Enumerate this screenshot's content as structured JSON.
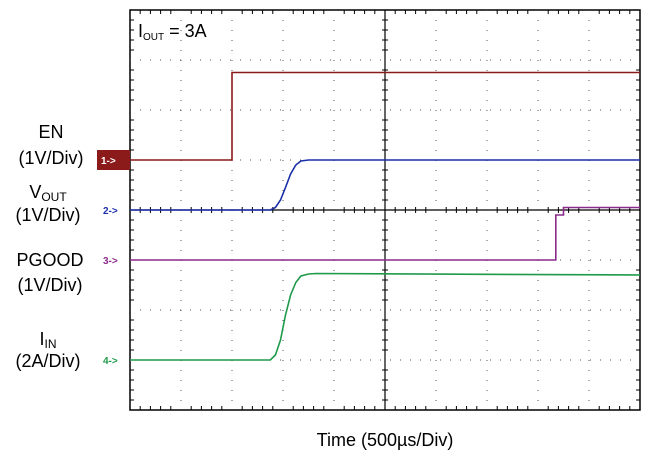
{
  "colors": {
    "ch1": "#8b1a1a",
    "ch2": "#1a2fa8",
    "ch3": "#8a2a8a",
    "ch4": "#1f9a4a",
    "grid": "#000000"
  },
  "chart_data": {
    "type": "line",
    "title": "",
    "annotation": {
      "prefix": "I",
      "subscript": "OUT",
      "suffix": " = 3A"
    },
    "xlabel": "Time  (500µs/Div)",
    "x_divisions": 10,
    "y_divisions": 8,
    "xlim": [
      0,
      10
    ],
    "ylim": [
      0,
      8
    ],
    "grid": true,
    "series": [
      {
        "channel": "1",
        "marker": "1->",
        "label_lines": [
          "EN",
          "(1V/Div)"
        ],
        "baseline": 5.0,
        "x": [
          0,
          2.0,
          2.0,
          10
        ],
        "y_div": [
          0,
          0,
          1.75,
          1.75
        ]
      },
      {
        "channel": "2",
        "marker": "2->",
        "label_base": "V",
        "label_sub": "OUT",
        "label_line2": "(1V/Div)",
        "baseline": 4.0,
        "x": [
          0,
          2.75,
          2.85,
          2.95,
          3.05,
          3.15,
          3.25,
          3.35,
          3.5,
          3.6,
          10
        ],
        "y_div": [
          0,
          0,
          0.05,
          0.2,
          0.45,
          0.72,
          0.9,
          0.98,
          1.0,
          1.0,
          1.0
        ]
      },
      {
        "channel": "3",
        "marker": "3->",
        "label_lines": [
          "PGOOD",
          "(1V/Div)"
        ],
        "baseline": 3.0,
        "x": [
          0,
          8.35,
          8.35,
          8.5,
          8.5,
          10
        ],
        "y_div": [
          0,
          0,
          0.9,
          0.9,
          1.05,
          1.05
        ]
      },
      {
        "channel": "4",
        "marker": "4->",
        "label_base": "I",
        "label_sub": "IN",
        "label_line2": "(2A/Div)",
        "baseline": 1.0,
        "x": [
          0,
          2.75,
          2.85,
          2.95,
          3.05,
          3.15,
          3.25,
          3.35,
          3.5,
          3.65,
          10
        ],
        "y_div": [
          0,
          0,
          0.1,
          0.4,
          0.9,
          1.3,
          1.55,
          1.68,
          1.72,
          1.73,
          1.7
        ]
      }
    ]
  }
}
